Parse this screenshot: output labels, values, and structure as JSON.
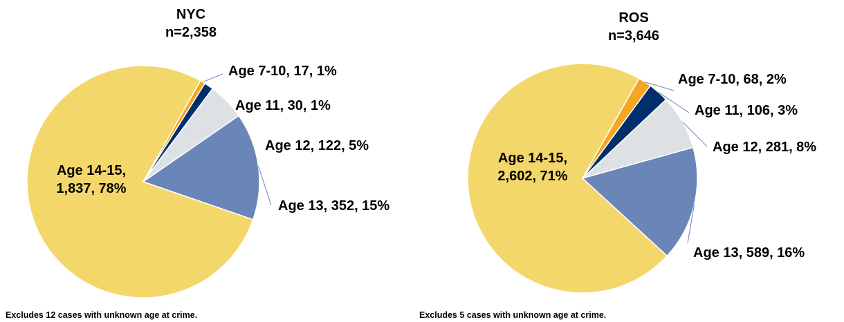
{
  "chart_data": [
    {
      "type": "pie",
      "title": "NYC",
      "subtitle": "n=2,358",
      "slices": [
        {
          "label": "Age 7-10",
          "count_text": "17",
          "pct_text": "1%",
          "value": 17,
          "color": "#F5A623"
        },
        {
          "label": "Age 11",
          "count_text": "30",
          "pct_text": "1%",
          "value": 30,
          "color": "#002F6C"
        },
        {
          "label": "Age 12",
          "count_text": "122",
          "pct_text": "5%",
          "value": 122,
          "color": "#DDE1E4"
        },
        {
          "label": "Age 13",
          "count_text": "352",
          "pct_text": "15%",
          "value": 352,
          "color": "#6A85B8"
        },
        {
          "label": "Age 14-15,",
          "count_text": "1,837",
          "pct_text": "78%",
          "value": 1837,
          "color": "#F4D76B"
        }
      ],
      "footnote": "Excludes 12 cases with unknown age at crime."
    },
    {
      "type": "pie",
      "title": "ROS",
      "subtitle": "n=3,646",
      "slices": [
        {
          "label": "Age 7-10",
          "count_text": "68",
          "pct_text": "2%",
          "value": 68,
          "color": "#F5A623"
        },
        {
          "label": "Age 11",
          "count_text": "106",
          "pct_text": "3%",
          "value": 106,
          "color": "#002F6C"
        },
        {
          "label": "Age 12",
          "count_text": "281",
          "pct_text": "8%",
          "value": 281,
          "color": "#DDE1E4"
        },
        {
          "label": "Age 13",
          "count_text": "589",
          "pct_text": "16%",
          "value": 589,
          "color": "#6A85B8"
        },
        {
          "label": "Age 14-15,",
          "count_text": "2,602",
          "pct_text": "71%",
          "value": 2602,
          "color": "#F4D76B"
        }
      ],
      "footnote": "Excludes 5 cases with unknown age at crime."
    }
  ]
}
